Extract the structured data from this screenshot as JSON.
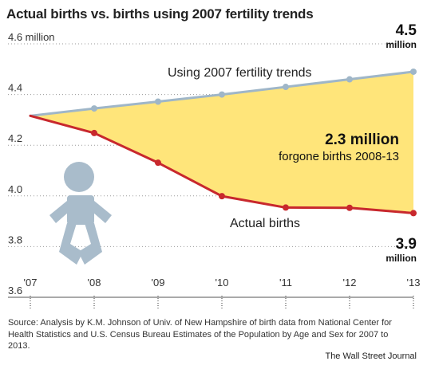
{
  "header": {
    "title": "Actual births vs. births using 2007 fertility trends"
  },
  "chart_data": {
    "type": "line",
    "title": "Actual births vs. births using 2007 fertility trends",
    "x": [
      "'07",
      "'08",
      "'09",
      "'10",
      "'11",
      "'12",
      "'13"
    ],
    "ylim": [
      3.6,
      4.6
    ],
    "y_ticks": [
      {
        "value": 4.6,
        "label": "4.6 million"
      },
      {
        "value": 4.4,
        "label": "4.4"
      },
      {
        "value": 4.2,
        "label": "4.2"
      },
      {
        "value": 4.0,
        "label": "4.0"
      },
      {
        "value": 3.8,
        "label": "3.8"
      },
      {
        "value": 3.6,
        "label": "3.6"
      }
    ],
    "grid": "dotted horizontal",
    "series": [
      {
        "name": "Using 2007 fertility trends",
        "color": "#9fb6c8",
        "values": [
          4.316,
          4.345,
          4.372,
          4.4,
          4.43,
          4.46,
          4.49
        ]
      },
      {
        "name": "Actual births",
        "color": "#c8282d",
        "values": [
          4.316,
          4.248,
          4.131,
          3.999,
          3.954,
          3.953,
          3.932
        ]
      }
    ],
    "fill_between": {
      "color": "#ffe57a"
    },
    "annotations": {
      "end_top_value": "4.5",
      "end_top_unit": "million",
      "end_bottom_value": "3.9",
      "end_bottom_unit": "million",
      "gap_value": "2.3 million",
      "gap_label": "forgone births 2008-13"
    },
    "icon": "baby-icon"
  },
  "footer": {
    "source": "Source: Analysis by K.M. Johnson of Univ. of New Hampshire of birth data from National Center for Health Statistics and U.S. Census Bureau Estimates of the Population by Age and Sex for 2007 to 2013.",
    "credit": "The Wall Street Journal"
  }
}
